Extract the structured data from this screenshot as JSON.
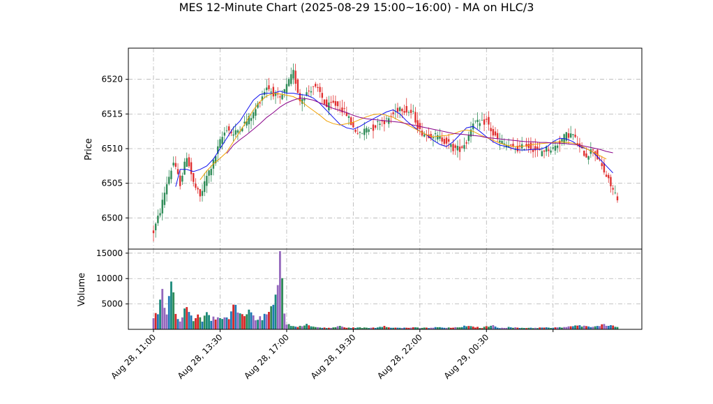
{
  "chart_data": [
    {
      "type": "candlestick",
      "title": "MES 12-Minute Chart (2025-08-29 15:00~16:00) - MA on HLC/3",
      "ylabel": "Price",
      "ylim": [
        6495.5,
        6524.5
      ],
      "yticks": [
        6500,
        6505,
        6510,
        6515,
        6520
      ],
      "xticks": [
        "Aug 28, 11:00",
        "Aug 28, 13:30",
        "Aug 28, 17:00",
        "Aug 28, 19:30",
        "Aug 28, 22:00",
        "Aug 29, 00:30"
      ],
      "grid": true,
      "colors": {
        "up": "#2e8b57",
        "down": "#e03030",
        "ma_short": "#1010ee",
        "ma_mid": "#f0a000",
        "ma_long": "#880088"
      },
      "close_path": [
        [
          0,
          6498
        ],
        [
          3,
          6501
        ],
        [
          6,
          6505
        ],
        [
          9,
          6508
        ],
        [
          12,
          6505
        ],
        [
          15,
          6509
        ],
        [
          18,
          6505
        ],
        [
          21,
          6503
        ],
        [
          24,
          6506
        ],
        [
          27,
          6508
        ],
        [
          30,
          6511
        ],
        [
          33,
          6513
        ],
        [
          36,
          6512
        ],
        [
          39,
          6513
        ],
        [
          42,
          6514
        ],
        [
          45,
          6515
        ],
        [
          48,
          6517
        ],
        [
          51,
          6519
        ],
        [
          54,
          6518
        ],
        [
          57,
          6517
        ],
        [
          60,
          6519
        ],
        [
          63,
          6521
        ],
        [
          66,
          6517
        ],
        [
          69,
          6518
        ],
        [
          72,
          6519
        ],
        [
          75,
          6518
        ],
        [
          78,
          6516
        ],
        [
          81,
          6516.5
        ],
        [
          84,
          6516
        ],
        [
          87,
          6515
        ],
        [
          90,
          6513
        ],
        [
          93,
          6512
        ],
        [
          96,
          6513
        ],
        [
          99,
          6513
        ],
        [
          102,
          6514
        ],
        [
          105,
          6514
        ],
        [
          108,
          6515
        ],
        [
          111,
          6516
        ],
        [
          114,
          6515.5
        ],
        [
          117,
          6515
        ],
        [
          120,
          6512.5
        ],
        [
          123,
          6512
        ],
        [
          126,
          6512
        ],
        [
          129,
          6511.5
        ],
        [
          132,
          6511
        ],
        [
          135,
          6510
        ],
        [
          138,
          6510
        ],
        [
          141,
          6511
        ],
        [
          144,
          6514
        ],
        [
          147,
          6513.5
        ],
        [
          150,
          6514
        ],
        [
          153,
          6512
        ],
        [
          156,
          6511
        ],
        [
          159,
          6510.5
        ],
        [
          162,
          6510
        ],
        [
          165,
          6510
        ],
        [
          168,
          6510.5
        ],
        [
          171,
          6510
        ],
        [
          174,
          6509.5
        ],
        [
          177,
          6510
        ],
        [
          180,
          6510
        ],
        [
          183,
          6511
        ],
        [
          186,
          6512
        ],
        [
          189,
          6512
        ],
        [
          192,
          6510
        ],
        [
          195,
          6509
        ],
        [
          198,
          6510
        ],
        [
          201,
          6508
        ],
        [
          204,
          6506
        ],
        [
          207,
          6504
        ],
        [
          209,
          6503
        ]
      ],
      "ma_short": [
        [
          10,
          6504.5
        ],
        [
          12,
          6507
        ],
        [
          15,
          6507
        ],
        [
          18,
          6506.7
        ],
        [
          21,
          6507
        ],
        [
          24,
          6507.5
        ],
        [
          27,
          6508.5
        ],
        [
          30,
          6510
        ],
        [
          33,
          6511.5
        ],
        [
          36,
          6513
        ],
        [
          39,
          6514
        ],
        [
          42,
          6515.5
        ],
        [
          45,
          6517
        ],
        [
          48,
          6517.8
        ],
        [
          51,
          6518
        ],
        [
          54,
          6518
        ],
        [
          57,
          6518.3
        ],
        [
          60,
          6518
        ],
        [
          63,
          6518
        ],
        [
          66,
          6517.8
        ],
        [
          69,
          6517.7
        ],
        [
          72,
          6517.3
        ],
        [
          75,
          6516.5
        ],
        [
          78,
          6515.5
        ],
        [
          81,
          6514.5
        ],
        [
          84,
          6513.5
        ],
        [
          87,
          6513
        ],
        [
          90,
          6512.8
        ],
        [
          93,
          6513.2
        ],
        [
          96,
          6513.8
        ],
        [
          99,
          6514.3
        ],
        [
          102,
          6514.8
        ],
        [
          105,
          6515.3
        ],
        [
          108,
          6515.6
        ],
        [
          111,
          6515
        ],
        [
          114,
          6514
        ],
        [
          117,
          6513.2
        ],
        [
          120,
          6512.5
        ],
        [
          123,
          6512
        ],
        [
          126,
          6511.2
        ],
        [
          129,
          6510.6
        ],
        [
          132,
          6510.3
        ],
        [
          135,
          6511
        ],
        [
          138,
          6512
        ],
        [
          141,
          6513
        ],
        [
          144,
          6513.2
        ],
        [
          147,
          6512.5
        ],
        [
          150,
          6511.7
        ],
        [
          153,
          6511
        ],
        [
          156,
          6510.5
        ],
        [
          159,
          6510.3
        ],
        [
          162,
          6510
        ],
        [
          165,
          6509.8
        ],
        [
          168,
          6509.8
        ],
        [
          171,
          6509.9
        ],
        [
          174,
          6509.9
        ],
        [
          177,
          6510.2
        ],
        [
          180,
          6511
        ],
        [
          183,
          6511.5
        ],
        [
          186,
          6511.4
        ],
        [
          189,
          6511
        ],
        [
          192,
          6510.3
        ],
        [
          195,
          6510
        ],
        [
          198,
          6509.5
        ],
        [
          201,
          6508.5
        ],
        [
          204,
          6507.5
        ],
        [
          207,
          6506.5
        ]
      ],
      "ma_mid": [
        [
          21,
          6505.5
        ],
        [
          24,
          6506.8
        ],
        [
          27,
          6507.8
        ],
        [
          30,
          6508.6
        ],
        [
          33,
          6509.5
        ],
        [
          36,
          6511
        ],
        [
          39,
          6512.5
        ],
        [
          42,
          6514
        ],
        [
          45,
          6515.6
        ],
        [
          48,
          6516.8
        ],
        [
          51,
          6517.6
        ],
        [
          54,
          6518
        ],
        [
          57,
          6517.9
        ],
        [
          60,
          6517.7
        ],
        [
          63,
          6517.5
        ],
        [
          66,
          6517
        ],
        [
          69,
          6516.2
        ],
        [
          72,
          6515.5
        ],
        [
          75,
          6514.8
        ],
        [
          78,
          6514
        ],
        [
          81,
          6513.6
        ],
        [
          84,
          6513.4
        ],
        [
          87,
          6513.6
        ],
        [
          90,
          6513.8
        ],
        [
          93,
          6514.2
        ],
        [
          96,
          6514.6
        ],
        [
          99,
          6514.9
        ],
        [
          102,
          6515
        ],
        [
          105,
          6514.8
        ],
        [
          108,
          6514.5
        ],
        [
          111,
          6514
        ],
        [
          114,
          6513.5
        ],
        [
          117,
          6513
        ],
        [
          120,
          6512.5
        ],
        [
          123,
          6512
        ],
        [
          126,
          6511.7
        ],
        [
          129,
          6511.8
        ],
        [
          132,
          6511.9
        ],
        [
          135,
          6512.1
        ],
        [
          138,
          6512.5
        ],
        [
          141,
          6512.7
        ],
        [
          144,
          6512.5
        ],
        [
          147,
          6512
        ],
        [
          150,
          6511.6
        ],
        [
          153,
          6511.2
        ],
        [
          156,
          6510.8
        ],
        [
          159,
          6510.5
        ],
        [
          162,
          6510.3
        ],
        [
          165,
          6510.3
        ],
        [
          168,
          6510.4
        ],
        [
          171,
          6510.6
        ],
        [
          174,
          6510.7
        ],
        [
          177,
          6510.8
        ],
        [
          180,
          6510.9
        ],
        [
          183,
          6511
        ],
        [
          186,
          6510.9
        ],
        [
          189,
          6510.8
        ],
        [
          192,
          6510.5
        ],
        [
          195,
          6510
        ],
        [
          198,
          6509.5
        ],
        [
          201,
          6509
        ],
        [
          204,
          6508.5
        ]
      ],
      "ma_long": [
        [
          33,
          6509.3
        ],
        [
          36,
          6510.5
        ],
        [
          39,
          6511.3
        ],
        [
          42,
          6512
        ],
        [
          45,
          6512.8
        ],
        [
          48,
          6513.6
        ],
        [
          51,
          6514.5
        ],
        [
          54,
          6515.2
        ],
        [
          57,
          6516
        ],
        [
          60,
          6516.6
        ],
        [
          63,
          6517
        ],
        [
          66,
          6517.3
        ],
        [
          69,
          6517.2
        ],
        [
          72,
          6517
        ],
        [
          75,
          6516.6
        ],
        [
          78,
          6516.2
        ],
        [
          81,
          6515.8
        ],
        [
          84,
          6515.5
        ],
        [
          87,
          6515.2
        ],
        [
          90,
          6514.8
        ],
        [
          93,
          6514.5
        ],
        [
          96,
          6514.3
        ],
        [
          99,
          6514.2
        ],
        [
          102,
          6514.1
        ],
        [
          105,
          6514
        ],
        [
          108,
          6513.9
        ],
        [
          111,
          6513.8
        ],
        [
          114,
          6513.6
        ],
        [
          117,
          6513.4
        ],
        [
          120,
          6513.2
        ],
        [
          123,
          6513
        ],
        [
          126,
          6512.8
        ],
        [
          129,
          6512.6
        ],
        [
          132,
          6512.4
        ],
        [
          135,
          6512.2
        ],
        [
          138,
          6512.1
        ],
        [
          141,
          6512
        ],
        [
          144,
          6511.9
        ],
        [
          147,
          6511.8
        ],
        [
          150,
          6511.6
        ],
        [
          153,
          6511.5
        ],
        [
          156,
          6511.4
        ],
        [
          159,
          6511.3
        ],
        [
          162,
          6511.2
        ],
        [
          165,
          6511.1
        ],
        [
          168,
          6511
        ],
        [
          171,
          6511
        ],
        [
          174,
          6510.9
        ],
        [
          177,
          6510.9
        ],
        [
          180,
          6510.8
        ],
        [
          183,
          6510.8
        ],
        [
          186,
          6510.7
        ],
        [
          189,
          6510.6
        ],
        [
          192,
          6510.5
        ],
        [
          195,
          6510.3
        ],
        [
          198,
          6510.1
        ],
        [
          201,
          6509.9
        ],
        [
          204,
          6509.6
        ],
        [
          207,
          6509.4
        ]
      ]
    },
    {
      "type": "bar",
      "ylabel": "Volume",
      "ylim": [
        0,
        15800
      ],
      "yticks": [
        5000,
        10000,
        15000
      ],
      "grid": true,
      "volume_path": [
        [
          0,
          1800
        ],
        [
          2,
          3500
        ],
        [
          4,
          6800
        ],
        [
          6,
          3000
        ],
        [
          8,
          9000
        ],
        [
          9,
          7000
        ],
        [
          10,
          2500
        ],
        [
          12,
          2000
        ],
        [
          14,
          3800
        ],
        [
          16,
          4500
        ],
        [
          18,
          2000
        ],
        [
          20,
          2600
        ],
        [
          22,
          1800
        ],
        [
          24,
          4300
        ],
        [
          26,
          2200
        ],
        [
          28,
          2000
        ],
        [
          30,
          1800
        ],
        [
          32,
          2100
        ],
        [
          34,
          2000
        ],
        [
          36,
          4700
        ],
        [
          38,
          3200
        ],
        [
          40,
          2500
        ],
        [
          42,
          2800
        ],
        [
          44,
          3500
        ],
        [
          46,
          2300
        ],
        [
          48,
          2100
        ],
        [
          50,
          2500
        ],
        [
          52,
          3300
        ],
        [
          54,
          6000
        ],
        [
          55,
          8000
        ],
        [
          56,
          10300
        ],
        [
          57,
          15200
        ],
        [
          58,
          9500
        ],
        [
          59,
          2800
        ],
        [
          60,
          1200
        ],
        [
          62,
          700
        ],
        [
          64,
          500
        ],
        [
          66,
          600
        ],
        [
          68,
          1000
        ],
        [
          70,
          800
        ],
        [
          72,
          500
        ],
        [
          74,
          400
        ],
        [
          76,
          300
        ],
        [
          80,
          300
        ],
        [
          84,
          600
        ],
        [
          88,
          300
        ],
        [
          92,
          350
        ],
        [
          96,
          300
        ],
        [
          100,
          350
        ],
        [
          104,
          700
        ],
        [
          108,
          300
        ],
        [
          112,
          300
        ],
        [
          116,
          350
        ],
        [
          120,
          300
        ],
        [
          124,
          300
        ],
        [
          128,
          400
        ],
        [
          132,
          300
        ],
        [
          136,
          350
        ],
        [
          140,
          600
        ],
        [
          144,
          500
        ],
        [
          148,
          300
        ],
        [
          152,
          800
        ],
        [
          156,
          300
        ],
        [
          160,
          400
        ],
        [
          164,
          300
        ],
        [
          168,
          300
        ],
        [
          172,
          300
        ],
        [
          176,
          350
        ],
        [
          180,
          300
        ],
        [
          184,
          400
        ],
        [
          188,
          600
        ],
        [
          192,
          700
        ],
        [
          196,
          500
        ],
        [
          200,
          800
        ],
        [
          204,
          900
        ],
        [
          207,
          700
        ],
        [
          209,
          600
        ]
      ]
    }
  ]
}
